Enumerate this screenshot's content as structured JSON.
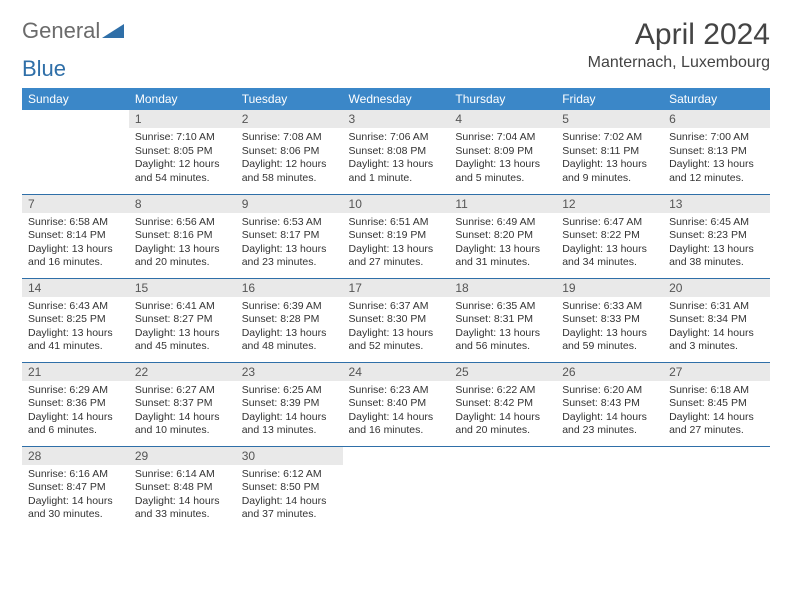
{
  "logo": {
    "text1": "General",
    "text2": "Blue",
    "color_gray": "#6b6b6b",
    "color_blue": "#2f6fa8"
  },
  "title": "April 2024",
  "location": "Manternach, Luxembourg",
  "header_bg": "#3b87c8",
  "header_fg": "#ffffff",
  "daynum_bg": "#e9e9e9",
  "row_border": "#2f6fa8",
  "weekdays": [
    "Sunday",
    "Monday",
    "Tuesday",
    "Wednesday",
    "Thursday",
    "Friday",
    "Saturday"
  ],
  "weeks": [
    [
      null,
      {
        "n": "1",
        "sr": "Sunrise: 7:10 AM",
        "ss": "Sunset: 8:05 PM",
        "dl": "Daylight: 12 hours and 54 minutes."
      },
      {
        "n": "2",
        "sr": "Sunrise: 7:08 AM",
        "ss": "Sunset: 8:06 PM",
        "dl": "Daylight: 12 hours and 58 minutes."
      },
      {
        "n": "3",
        "sr": "Sunrise: 7:06 AM",
        "ss": "Sunset: 8:08 PM",
        "dl": "Daylight: 13 hours and 1 minute."
      },
      {
        "n": "4",
        "sr": "Sunrise: 7:04 AM",
        "ss": "Sunset: 8:09 PM",
        "dl": "Daylight: 13 hours and 5 minutes."
      },
      {
        "n": "5",
        "sr": "Sunrise: 7:02 AM",
        "ss": "Sunset: 8:11 PM",
        "dl": "Daylight: 13 hours and 9 minutes."
      },
      {
        "n": "6",
        "sr": "Sunrise: 7:00 AM",
        "ss": "Sunset: 8:13 PM",
        "dl": "Daylight: 13 hours and 12 minutes."
      }
    ],
    [
      {
        "n": "7",
        "sr": "Sunrise: 6:58 AM",
        "ss": "Sunset: 8:14 PM",
        "dl": "Daylight: 13 hours and 16 minutes."
      },
      {
        "n": "8",
        "sr": "Sunrise: 6:56 AM",
        "ss": "Sunset: 8:16 PM",
        "dl": "Daylight: 13 hours and 20 minutes."
      },
      {
        "n": "9",
        "sr": "Sunrise: 6:53 AM",
        "ss": "Sunset: 8:17 PM",
        "dl": "Daylight: 13 hours and 23 minutes."
      },
      {
        "n": "10",
        "sr": "Sunrise: 6:51 AM",
        "ss": "Sunset: 8:19 PM",
        "dl": "Daylight: 13 hours and 27 minutes."
      },
      {
        "n": "11",
        "sr": "Sunrise: 6:49 AM",
        "ss": "Sunset: 8:20 PM",
        "dl": "Daylight: 13 hours and 31 minutes."
      },
      {
        "n": "12",
        "sr": "Sunrise: 6:47 AM",
        "ss": "Sunset: 8:22 PM",
        "dl": "Daylight: 13 hours and 34 minutes."
      },
      {
        "n": "13",
        "sr": "Sunrise: 6:45 AM",
        "ss": "Sunset: 8:23 PM",
        "dl": "Daylight: 13 hours and 38 minutes."
      }
    ],
    [
      {
        "n": "14",
        "sr": "Sunrise: 6:43 AM",
        "ss": "Sunset: 8:25 PM",
        "dl": "Daylight: 13 hours and 41 minutes."
      },
      {
        "n": "15",
        "sr": "Sunrise: 6:41 AM",
        "ss": "Sunset: 8:27 PM",
        "dl": "Daylight: 13 hours and 45 minutes."
      },
      {
        "n": "16",
        "sr": "Sunrise: 6:39 AM",
        "ss": "Sunset: 8:28 PM",
        "dl": "Daylight: 13 hours and 48 minutes."
      },
      {
        "n": "17",
        "sr": "Sunrise: 6:37 AM",
        "ss": "Sunset: 8:30 PM",
        "dl": "Daylight: 13 hours and 52 minutes."
      },
      {
        "n": "18",
        "sr": "Sunrise: 6:35 AM",
        "ss": "Sunset: 8:31 PM",
        "dl": "Daylight: 13 hours and 56 minutes."
      },
      {
        "n": "19",
        "sr": "Sunrise: 6:33 AM",
        "ss": "Sunset: 8:33 PM",
        "dl": "Daylight: 13 hours and 59 minutes."
      },
      {
        "n": "20",
        "sr": "Sunrise: 6:31 AM",
        "ss": "Sunset: 8:34 PM",
        "dl": "Daylight: 14 hours and 3 minutes."
      }
    ],
    [
      {
        "n": "21",
        "sr": "Sunrise: 6:29 AM",
        "ss": "Sunset: 8:36 PM",
        "dl": "Daylight: 14 hours and 6 minutes."
      },
      {
        "n": "22",
        "sr": "Sunrise: 6:27 AM",
        "ss": "Sunset: 8:37 PM",
        "dl": "Daylight: 14 hours and 10 minutes."
      },
      {
        "n": "23",
        "sr": "Sunrise: 6:25 AM",
        "ss": "Sunset: 8:39 PM",
        "dl": "Daylight: 14 hours and 13 minutes."
      },
      {
        "n": "24",
        "sr": "Sunrise: 6:23 AM",
        "ss": "Sunset: 8:40 PM",
        "dl": "Daylight: 14 hours and 16 minutes."
      },
      {
        "n": "25",
        "sr": "Sunrise: 6:22 AM",
        "ss": "Sunset: 8:42 PM",
        "dl": "Daylight: 14 hours and 20 minutes."
      },
      {
        "n": "26",
        "sr": "Sunrise: 6:20 AM",
        "ss": "Sunset: 8:43 PM",
        "dl": "Daylight: 14 hours and 23 minutes."
      },
      {
        "n": "27",
        "sr": "Sunrise: 6:18 AM",
        "ss": "Sunset: 8:45 PM",
        "dl": "Daylight: 14 hours and 27 minutes."
      }
    ],
    [
      {
        "n": "28",
        "sr": "Sunrise: 6:16 AM",
        "ss": "Sunset: 8:47 PM",
        "dl": "Daylight: 14 hours and 30 minutes."
      },
      {
        "n": "29",
        "sr": "Sunrise: 6:14 AM",
        "ss": "Sunset: 8:48 PM",
        "dl": "Daylight: 14 hours and 33 minutes."
      },
      {
        "n": "30",
        "sr": "Sunrise: 6:12 AM",
        "ss": "Sunset: 8:50 PM",
        "dl": "Daylight: 14 hours and 37 minutes."
      },
      null,
      null,
      null,
      null
    ]
  ]
}
